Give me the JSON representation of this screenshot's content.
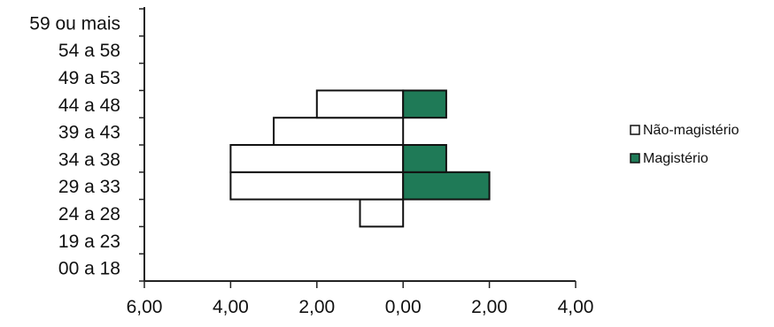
{
  "chart_data": {
    "type": "bar",
    "orientation": "horizontal",
    "layout": "population-pyramid",
    "categories": [
      "00 a 18",
      "19 a 23",
      "24 a 28",
      "29 a 33",
      "34 a 38",
      "39 a 43",
      "44 a 48",
      "49 a 53",
      "54 a 58",
      "59 ou mais"
    ],
    "series": [
      {
        "name": "Não-magistério",
        "side": "left",
        "color": "#ffffff",
        "values": [
          0,
          0,
          1,
          4,
          4,
          3,
          2,
          0,
          0,
          0
        ]
      },
      {
        "name": "Magistério",
        "side": "right",
        "color": "#1f7a57",
        "values": [
          0,
          0,
          0,
          2,
          1,
          0,
          1,
          0,
          0,
          0
        ]
      }
    ],
    "x_ticks": [
      "6,00",
      "4,00",
      "2,00",
      "0,00",
      "2,00",
      "4,00"
    ],
    "xlim": [
      -6,
      4
    ],
    "grid": false,
    "legend_position": "right"
  }
}
